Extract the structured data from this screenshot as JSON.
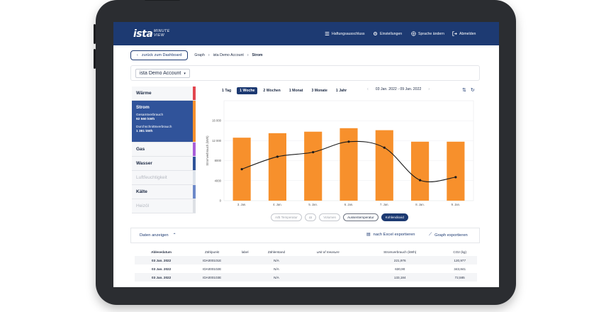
{
  "app": {
    "logo": "ista",
    "logo_sub": [
      "MINUTE",
      "VIEW"
    ],
    "nav": {
      "liability": "Haftungsausschluss",
      "settings": "Einstellungen",
      "language": "Sprache ändern",
      "logout": "Abmelden"
    }
  },
  "breadcrumb": {
    "back": "zurück zum Dashboard",
    "items": [
      "Graph",
      "ista Demo Account",
      "Strom"
    ]
  },
  "account": {
    "selected": "ista Demo Account"
  },
  "sidebar": {
    "items": [
      {
        "label": "Wärme",
        "color": "#e2464f"
      },
      {
        "label": "Strom",
        "color": "#f7902c",
        "sub1_label": "Gesamtverbrauch",
        "sub1_value": "92 560 kWh",
        "sub2_label": "Durchschnittsverbrauch",
        "sub2_value": "1 381 kWh"
      },
      {
        "label": "Gas",
        "color": "#a85fd8"
      },
      {
        "label": "Wasser",
        "color": "#30539a"
      },
      {
        "label": "Luftfeuchtigkeit",
        "color": "#b6c9dd"
      },
      {
        "label": "Kälte",
        "color": "#6d89c9"
      },
      {
        "label": "Heizöl",
        "color": "#b7bdc8"
      }
    ]
  },
  "ranges": [
    "1 Tag",
    "1 Woche",
    "2 Wochen",
    "1 Monat",
    "3 Monate",
    "1 Jahr"
  ],
  "active_range": "1 Woche",
  "date_range": "03 Jan. 2022 - 09 Jan. 2022",
  "colors": {
    "bar": "#f7902c",
    "line": "#1b1b1b",
    "accent": "#1d3a72"
  },
  "chart_data": {
    "type": "bar",
    "categories": [
      "3. Jan.",
      "4. Jan.",
      "5. Jan.",
      "6. Jan.",
      "7. Jan.",
      "8. Jan.",
      "9. Jan."
    ],
    "series": [
      {
        "type": "bar",
        "values": [
          12600,
          13500,
          13800,
          14500,
          14100,
          11800,
          11800
        ]
      },
      {
        "type": "line",
        "values": [
          6300,
          8800,
          9700,
          11800,
          10600,
          4100,
          4700
        ]
      }
    ],
    "ylabel": "Stromverbrauch (kWh)",
    "yticks": [
      "0",
      "4000",
      "8000",
      "12 000",
      "16 000"
    ],
    "ylim": [
      0,
      20000
    ],
    "grid": true
  },
  "legend": {
    "items": [
      {
        "label": "A/B Temperatur",
        "style": "outline"
      },
      {
        "label": "Δt",
        "style": "outline"
      },
      {
        "label": "Volumen",
        "style": "outline"
      },
      {
        "label": "Aussentemperatur",
        "style": "dark"
      },
      {
        "label": "Kohlendioxid",
        "style": "filled"
      }
    ]
  },
  "export": {
    "toggle": "Daten anzeigen",
    "excel": "nach Excel exportieren",
    "graph": "Graph exportieren"
  },
  "table": {
    "headers": [
      "Ablesedatum",
      "Zählpunkt",
      "label",
      "Zählerstand",
      "unit of measure",
      "Stromverbrauch (kWh)",
      "CO2 (kg)"
    ],
    "rows": [
      [
        "03 Jan. 2022",
        "IDA000101E",
        "",
        "N/A",
        "",
        "221,976",
        "120,977"
      ],
      [
        "03 Jan. 2022",
        "IDA000102E",
        "",
        "N/A",
        "",
        "630,90",
        "343,841"
      ],
      [
        "03 Jan. 2022",
        "IDA000103E",
        "",
        "N/A",
        "",
        "133,184",
        "72,585"
      ]
    ]
  }
}
